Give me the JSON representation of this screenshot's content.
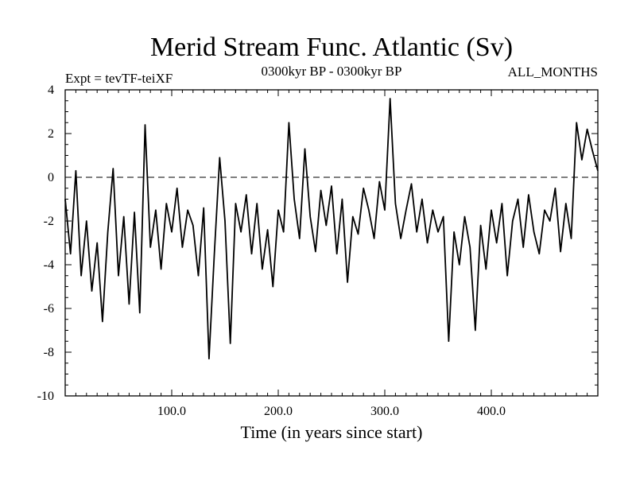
{
  "chart_data": {
    "type": "line",
    "title": "Merid Stream Func. Atlantic (Sv)",
    "subtitle": "0300kyr BP - 0300kyr BP",
    "left_label": "Expt = tevTF-teiXF",
    "right_label": "ALL_MONTHS",
    "xlabel": "Time (in years since start)",
    "ylabel": "",
    "xlim": [
      0,
      500
    ],
    "ylim": [
      -10,
      4
    ],
    "xticks": [
      100,
      200,
      300,
      400
    ],
    "xtick_labels": [
      "100.0",
      "200.0",
      "300.0",
      "400.0"
    ],
    "yticks": [
      -10,
      -8,
      -6,
      -4,
      -2,
      0,
      2,
      4
    ],
    "ytick_labels": [
      "-10",
      "-8",
      "-6",
      "-4",
      "-2",
      "0",
      "2",
      "4"
    ],
    "reference_line": 0,
    "series": [
      {
        "name": "Merid Stream Func. Atlantic",
        "x": [
          0,
          5,
          10,
          15,
          20,
          25,
          30,
          35,
          40,
          45,
          50,
          55,
          60,
          65,
          70,
          75,
          80,
          85,
          90,
          95,
          100,
          105,
          110,
          115,
          120,
          125,
          130,
          135,
          140,
          145,
          150,
          155,
          160,
          165,
          170,
          175,
          180,
          185,
          190,
          195,
          200,
          205,
          210,
          215,
          220,
          225,
          230,
          235,
          240,
          245,
          250,
          255,
          260,
          265,
          270,
          275,
          280,
          285,
          290,
          295,
          300,
          305,
          310,
          315,
          320,
          325,
          330,
          335,
          340,
          345,
          350,
          355,
          360,
          365,
          370,
          375,
          380,
          385,
          390,
          395,
          400,
          405,
          410,
          415,
          420,
          425,
          430,
          435,
          440,
          445,
          450,
          455,
          460,
          465,
          470,
          475,
          480,
          485,
          490,
          495,
          500
        ],
        "values": [
          -1.0,
          -3.5,
          0.3,
          -4.5,
          -2.0,
          -5.2,
          -3.0,
          -6.6,
          -2.5,
          0.4,
          -4.5,
          -1.8,
          -5.8,
          -1.6,
          -6.2,
          2.4,
          -3.2,
          -1.5,
          -4.2,
          -1.2,
          -2.5,
          -0.5,
          -3.2,
          -1.5,
          -2.2,
          -4.5,
          -1.4,
          -8.3,
          -3.5,
          0.9,
          -2.0,
          -7.6,
          -1.2,
          -2.5,
          -0.8,
          -3.5,
          -1.2,
          -4.2,
          -2.4,
          -5.0,
          -1.5,
          -2.5,
          2.5,
          -1.0,
          -2.8,
          1.3,
          -1.8,
          -3.4,
          -0.6,
          -2.2,
          -0.4,
          -3.5,
          -1.0,
          -4.8,
          -1.8,
          -2.6,
          -0.5,
          -1.5,
          -2.8,
          -0.2,
          -1.5,
          3.6,
          -1.2,
          -2.8,
          -1.5,
          -0.3,
          -2.5,
          -1.0,
          -3.0,
          -1.5,
          -2.5,
          -1.8,
          -7.5,
          -2.5,
          -4.0,
          -1.8,
          -3.2,
          -7.0,
          -2.2,
          -4.2,
          -1.5,
          -3.0,
          -1.2,
          -4.5,
          -2.0,
          -1.0,
          -3.2,
          -0.8,
          -2.5,
          -3.5,
          -1.5,
          -2.0,
          -0.5,
          -3.4,
          -1.2,
          -2.8,
          2.5,
          0.8,
          2.2,
          1.2,
          0.3
        ]
      }
    ]
  }
}
